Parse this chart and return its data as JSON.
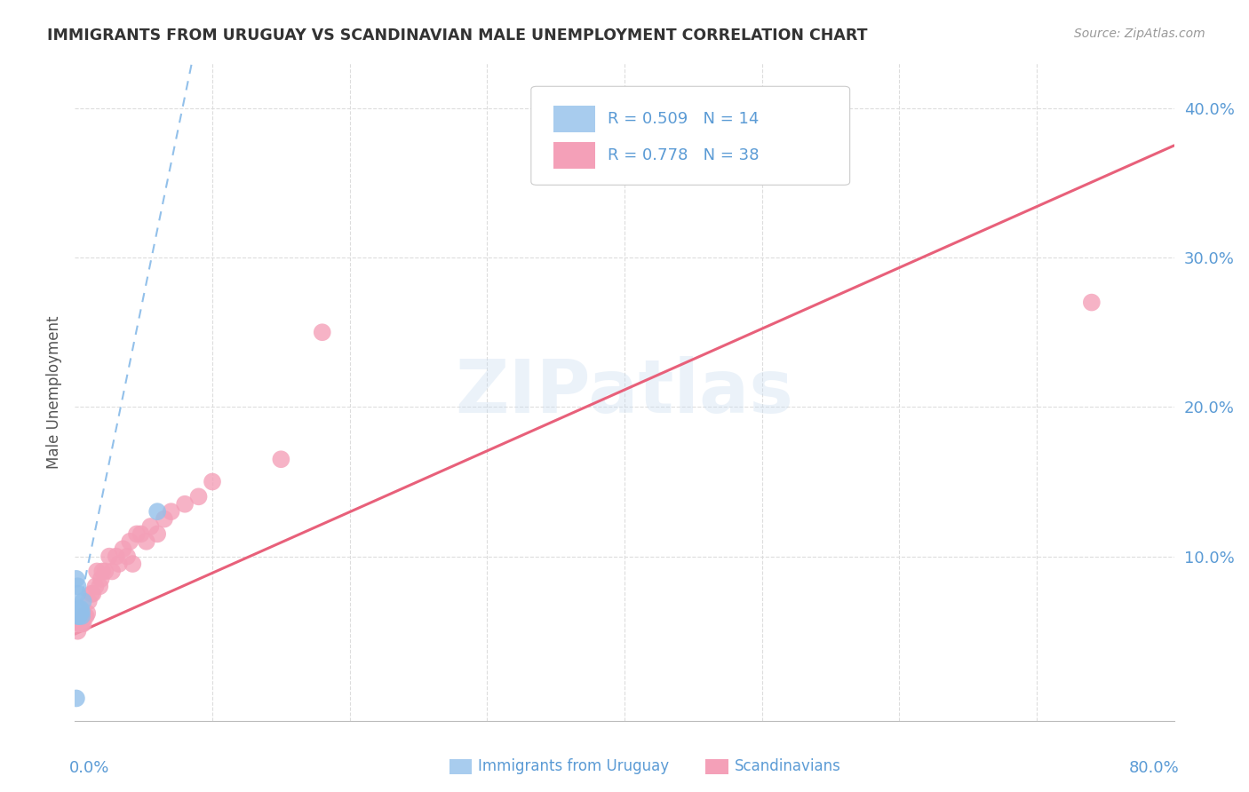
{
  "title": "IMMIGRANTS FROM URUGUAY VS SCANDINAVIAN MALE UNEMPLOYMENT CORRELATION CHART",
  "source": "Source: ZipAtlas.com",
  "ylabel": "Male Unemployment",
  "watermark": "ZIPatlas",
  "xlim": [
    0.0,
    0.8
  ],
  "ylim": [
    -0.01,
    0.43
  ],
  "background_color": "#ffffff",
  "color_uruguay": "#92C0EA",
  "color_scandi": "#F4A0B8",
  "trendline_scandi_color": "#E8607A",
  "trendline_uruguay_color": "#92C0EA",
  "legend_text1": "R = 0.509   N = 14",
  "legend_text2": "R = 0.778   N = 38",
  "legend_color1": "#A8CCEE",
  "legend_color2": "#F4A0B8",
  "tick_color": "#5B9BD5",
  "uruguay_x": [
    0.001,
    0.002,
    0.002,
    0.002,
    0.003,
    0.003,
    0.003,
    0.004,
    0.004,
    0.005,
    0.005,
    0.006,
    0.06,
    0.001
  ],
  "uruguay_y": [
    0.085,
    0.075,
    0.08,
    0.06,
    0.06,
    0.065,
    0.06,
    0.063,
    0.065,
    0.06,
    0.063,
    0.07,
    0.13,
    0.005
  ],
  "scandi_x": [
    0.002,
    0.003,
    0.004,
    0.005,
    0.006,
    0.007,
    0.008,
    0.009,
    0.01,
    0.012,
    0.013,
    0.015,
    0.016,
    0.018,
    0.019,
    0.02,
    0.022,
    0.025,
    0.027,
    0.03,
    0.032,
    0.035,
    0.038,
    0.04,
    0.042,
    0.045,
    0.048,
    0.052,
    0.055,
    0.06,
    0.065,
    0.07,
    0.08,
    0.09,
    0.1,
    0.15,
    0.18,
    0.74
  ],
  "scandi_y": [
    0.05,
    0.055,
    0.055,
    0.055,
    0.055,
    0.06,
    0.06,
    0.062,
    0.07,
    0.075,
    0.075,
    0.08,
    0.09,
    0.08,
    0.085,
    0.09,
    0.09,
    0.1,
    0.09,
    0.1,
    0.095,
    0.105,
    0.1,
    0.11,
    0.095,
    0.115,
    0.115,
    0.11,
    0.12,
    0.115,
    0.125,
    0.13,
    0.135,
    0.14,
    0.15,
    0.165,
    0.25,
    0.27
  ],
  "scandi_trendline_x0": 0.0,
  "scandi_trendline_x1": 0.8,
  "scandi_trendline_y0": 0.048,
  "scandi_trendline_y1": 0.375,
  "uruguay_trendline_x0": 0.0,
  "uruguay_trendline_x1": 0.085,
  "uruguay_trendline_y0": 0.052,
  "uruguay_trendline_y1": 0.43
}
